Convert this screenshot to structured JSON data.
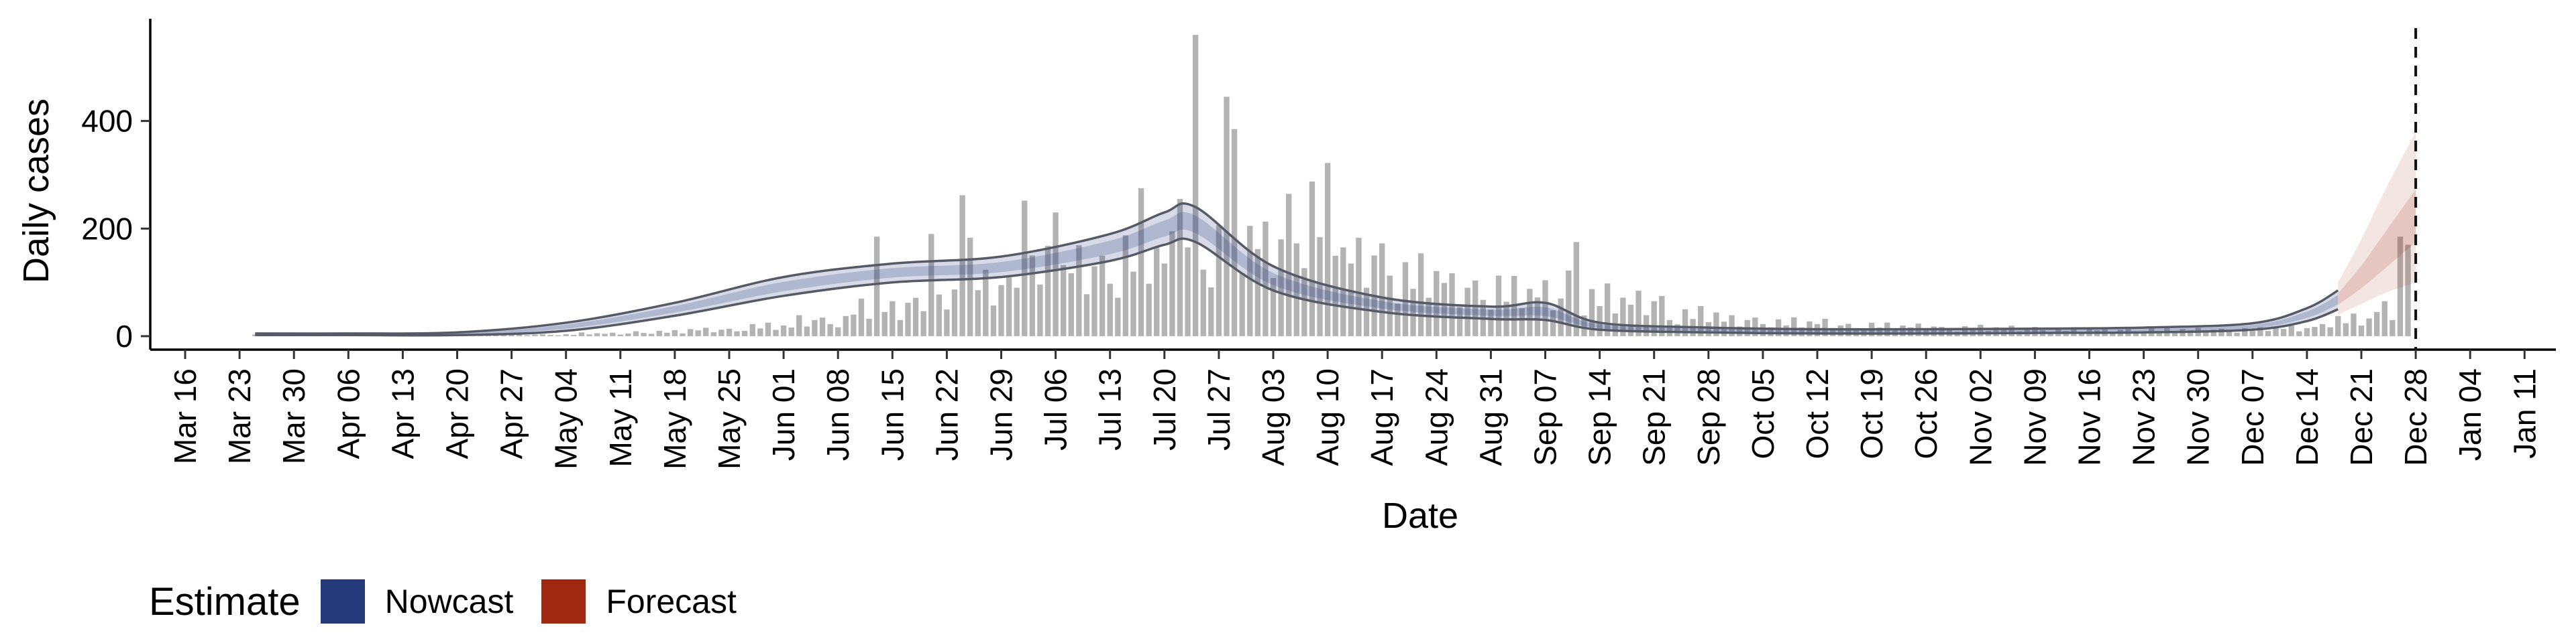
{
  "chart_data": {
    "type": "bar",
    "xlabel": "Date",
    "ylabel": "Daily cases",
    "ylim": [
      -25,
      590
    ],
    "y_ticks": [
      0,
      200,
      400
    ],
    "x_tick_labels": [
      "Mar 16",
      "Mar 23",
      "Mar 30",
      "Apr 06",
      "Apr 13",
      "Apr 20",
      "Apr 27",
      "May 04",
      "May 11",
      "May 18",
      "May 25",
      "Jun 01",
      "Jun 08",
      "Jun 15",
      "Jun 22",
      "Jun 29",
      "Jul 06",
      "Jul 13",
      "Jul 20",
      "Jul 27",
      "Aug 03",
      "Aug 10",
      "Aug 17",
      "Aug 24",
      "Aug 31",
      "Sep 07",
      "Sep 14",
      "Sep 21",
      "Sep 28",
      "Oct 05",
      "Oct 12",
      "Oct 19",
      "Oct 26",
      "Nov 02",
      "Nov 09",
      "Nov 16",
      "Nov 23",
      "Nov 30",
      "Dec 07",
      "Dec 14",
      "Dec 21",
      "Dec 28",
      "Jan 04",
      "Jan 11"
    ],
    "x_start_label": "Mar 16",
    "x_tick_interval_days": 7,
    "reported_cases": {
      "first_date": "Mar 25",
      "weekly_mean": [
        3,
        2,
        2,
        2,
        3,
        3,
        5,
        8,
        12,
        18,
        30,
        50,
        62,
        95,
        120,
        130,
        150,
        165,
        180,
        230,
        150,
        110,
        90,
        80,
        70,
        65,
        40,
        30,
        25,
        20,
        18,
        15,
        15,
        12,
        12,
        12,
        12,
        15,
        30,
        50,
        55,
        90
      ],
      "spikes": [
        {
          "date": "Jul 24",
          "value": 560
        },
        {
          "date": "Jul 28",
          "value": 445
        },
        {
          "date": "Jul 29",
          "value": 385
        },
        {
          "date": "Jun 20",
          "value": 190
        },
        {
          "date": "Jun 24",
          "value": 262
        },
        {
          "date": "Jun 25",
          "value": 183
        },
        {
          "date": "Jul 02",
          "value": 252
        },
        {
          "date": "Jul 06",
          "value": 230
        },
        {
          "date": "Jul 17",
          "value": 275
        },
        {
          "date": "Jul 22",
          "value": 255
        },
        {
          "date": "Jul 31",
          "value": 205
        },
        {
          "date": "Aug 02",
          "value": 213
        },
        {
          "date": "Aug 14",
          "value": 183
        },
        {
          "date": "Sep 11",
          "value": 175
        },
        {
          "date": "Sep 10",
          "value": 122
        },
        {
          "date": "Jun 13",
          "value": 185
        },
        {
          "date": "Dec 26",
          "value": 185
        },
        {
          "date": "Dec 27",
          "value": 170
        }
      ]
    },
    "nowcast": {
      "name": "Nowcast",
      "color": "#253a7a",
      "dates": [
        "Mar 25",
        "Apr 06",
        "Apr 20",
        "May 04",
        "May 18",
        "Jun 01",
        "Jun 15",
        "Jun 29",
        "Jul 13",
        "Jul 20",
        "Jul 24",
        "Aug 03",
        "Aug 17",
        "Aug 31",
        "Sep 07",
        "Sep 14",
        "Sep 28",
        "Oct 12",
        "Oct 26",
        "Nov 09",
        "Nov 23",
        "Dec 07",
        "Dec 14",
        "Dec 18"
      ],
      "median": [
        3,
        3,
        4,
        18,
        50,
        92,
        118,
        128,
        165,
        200,
        208,
        105,
        58,
        44,
        45,
        18,
        11,
        9,
        9,
        10,
        11,
        18,
        40,
        68
      ],
      "upper": [
        5,
        5,
        7,
        25,
        62,
        110,
        135,
        148,
        190,
        230,
        240,
        130,
        72,
        55,
        62,
        25,
        16,
        13,
        13,
        14,
        16,
        24,
        52,
        85
      ],
      "lower": [
        2,
        2,
        2,
        10,
        38,
        75,
        100,
        110,
        140,
        170,
        175,
        85,
        45,
        32,
        30,
        12,
        7,
        5,
        5,
        6,
        7,
        12,
        28,
        50
      ]
    },
    "forecast": {
      "name": "Forecast",
      "color": "#a02810",
      "dates": [
        "Dec 18",
        "Dec 21",
        "Dec 24",
        "Dec 28"
      ],
      "median": [
        68,
        105,
        150,
        215
      ],
      "upper": [
        100,
        180,
        270,
        380
      ],
      "lower": [
        40,
        60,
        80,
        100
      ]
    },
    "vline": {
      "date": "Dec 28",
      "style": "dashed"
    },
    "legend": {
      "title": "Estimate",
      "position": "bottom-left"
    }
  },
  "legend": {
    "title": "Estimate",
    "items": [
      {
        "label": "Nowcast",
        "color": "#253a7a"
      },
      {
        "label": "Forecast",
        "color": "#a02810"
      }
    ]
  }
}
